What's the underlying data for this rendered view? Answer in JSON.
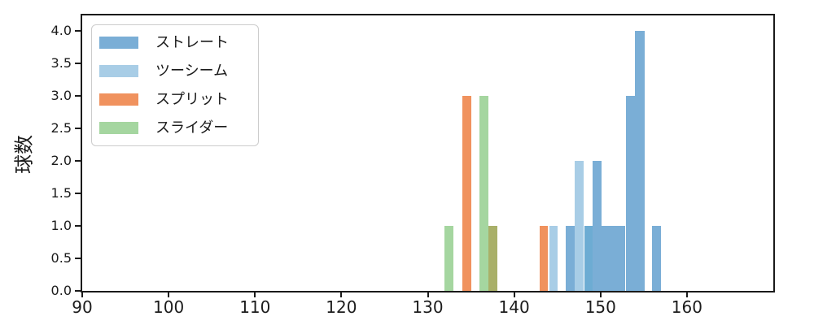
{
  "chart_data": {
    "type": "bar",
    "subtype": "overlaid-histogram",
    "title": "",
    "xlabel": "",
    "ylabel": "球数",
    "xlim": [
      90,
      170
    ],
    "ylim": [
      0,
      4.24
    ],
    "grid": false,
    "legend_position": "upper-left",
    "x_ticks": [
      {
        "v": 90,
        "label": "90"
      },
      {
        "v": 100,
        "label": "100"
      },
      {
        "v": 110,
        "label": "110"
      },
      {
        "v": 120,
        "label": "120"
      },
      {
        "v": 130,
        "label": "130"
      },
      {
        "v": 140,
        "label": "140"
      },
      {
        "v": 150,
        "label": "150"
      },
      {
        "v": 160,
        "label": "160"
      }
    ],
    "y_ticks": [
      {
        "v": 0,
        "label": "0.0"
      },
      {
        "v": 0.5,
        "label": "0.5"
      },
      {
        "v": 1,
        "label": "1.0"
      },
      {
        "v": 1.5,
        "label": "1.5"
      },
      {
        "v": 2,
        "label": "2.0"
      },
      {
        "v": 2.5,
        "label": "2.5"
      },
      {
        "v": 3,
        "label": "3.0"
      },
      {
        "v": 3.5,
        "label": "3.5"
      },
      {
        "v": 4,
        "label": "4.0"
      }
    ],
    "series": [
      {
        "id": "straight",
        "name": "ストレート",
        "color": "#7AAED6",
        "bars": [
          {
            "x0": 146.0,
            "x1": 147.05,
            "count": 1
          },
          {
            "x0": 148.1,
            "x1": 149.1,
            "count": 1
          },
          {
            "x0": 149.1,
            "x1": 150.1,
            "count": 2
          },
          {
            "x0": 150.1,
            "x1": 152.9,
            "count": 1
          },
          {
            "x0": 152.9,
            "x1": 154.0,
            "count": 3
          },
          {
            "x0": 154.0,
            "x1": 155.1,
            "count": 4
          },
          {
            "x0": 156.0,
            "x1": 157.05,
            "count": 1
          }
        ]
      },
      {
        "id": "twoseam",
        "name": "ツーシーム",
        "color": "#A8CDE6",
        "bars": [
          {
            "x0": 144.05,
            "x1": 145.05,
            "count": 1
          },
          {
            "x0": 147.05,
            "x1": 148.1,
            "count": 2
          },
          {
            "x0": 148.1,
            "x1": 149.1,
            "count": 1
          }
        ]
      },
      {
        "id": "split",
        "name": "スプリット",
        "color": "#F0925E",
        "bars": [
          {
            "x0": 134.0,
            "x1": 135.0,
            "count": 3
          },
          {
            "x0": 137.0,
            "x1": 138.05,
            "count": 1
          },
          {
            "x0": 142.95,
            "x1": 143.95,
            "count": 1
          }
        ]
      },
      {
        "id": "slider",
        "name": "スライダー",
        "color": "#A5D6A0",
        "bars": [
          {
            "x0": 131.95,
            "x1": 132.95,
            "count": 1
          },
          {
            "x0": 135.95,
            "x1": 137.0,
            "count": 3
          },
          {
            "x0": 137.0,
            "x1": 138.05,
            "count": 1
          }
        ]
      }
    ],
    "overlap_segments": [
      {
        "x0": 137.0,
        "x1": 138.05,
        "count": 1,
        "color": "#A9B069",
        "series": [
          "スプリット",
          "スライダー"
        ]
      },
      {
        "x0": 148.1,
        "x1": 149.1,
        "count": 1,
        "color": "#6DACD3",
        "series": [
          "ストレート",
          "ツーシーム"
        ]
      }
    ]
  }
}
